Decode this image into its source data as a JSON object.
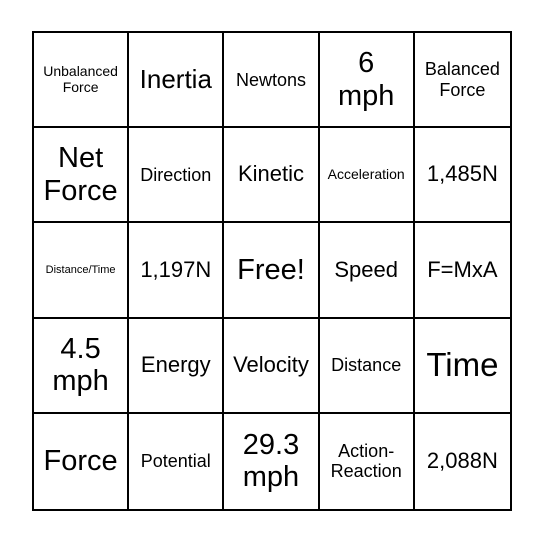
{
  "board": {
    "cells": [
      "Unbalanced Force",
      "Inertia",
      "Newtons",
      "6 mph",
      "Balanced Force",
      "Net Force",
      "Direction",
      "Kinetic",
      "Acceleration",
      "1,485N",
      "Distance/Time",
      "1,197N",
      "Free!",
      "Speed",
      "F=MxA",
      "4.5 mph",
      "Energy",
      "Velocity",
      "Distance",
      "Time",
      "Force",
      "Potential",
      "29.3 mph",
      "Action-Reaction",
      "2,088N"
    ]
  }
}
